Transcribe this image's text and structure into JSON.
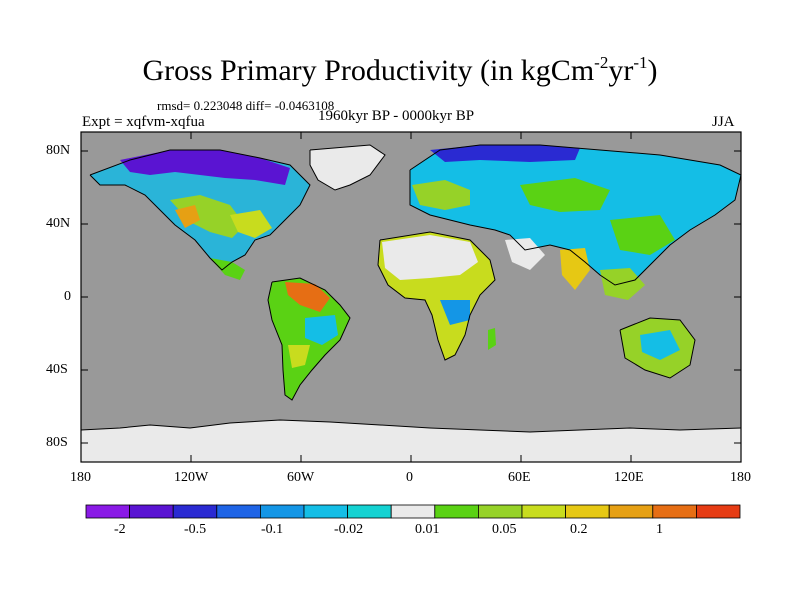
{
  "title": {
    "main": "Gross Primary Productivity (in kgCm",
    "sup1": "-2",
    "mid": "yr",
    "sup2": "-1",
    "end": ")"
  },
  "stats_line": "rmsd= 0.223048 diff= -0.0463108",
  "expt_label": "Expt = xqfvm-xqfua",
  "period_label": "1960kyr BP - 0000kyr BP",
  "season_label": "JJA",
  "lat_ticks": [
    "80N",
    "40N",
    "0",
    "40S",
    "80S"
  ],
  "lon_ticks": [
    "180",
    "120W",
    "60W",
    "0",
    "60E",
    "120E",
    "180"
  ],
  "colorbar": {
    "colors": [
      "#8a1ae6",
      "#5a14d2",
      "#2a2ad2",
      "#1e64e6",
      "#1496e6",
      "#14bee6",
      "#14d2d2",
      "#eaeaea",
      "#5ad214",
      "#96d228",
      "#c8dc1e",
      "#e6c814",
      "#e6a014",
      "#e66e14",
      "#e63c14"
    ],
    "labels": [
      "-2",
      "-0.5",
      "-0.1",
      "-0.02",
      "0.01",
      "0.05",
      "0.2",
      "1"
    ]
  },
  "map_colors": {
    "ocean": "#999999",
    "ice": "#eaeaea",
    "coast": "#000000"
  }
}
